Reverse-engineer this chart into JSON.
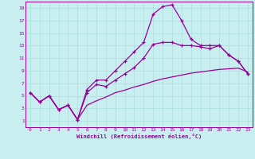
{
  "title": "",
  "xlabel": "Windchill (Refroidissement éolien,°C)",
  "ylabel": "",
  "bg_color": "#c8eef0",
  "line_color": "#990099",
  "grid_color": "#aadddd",
  "xlim": [
    -0.5,
    23.5
  ],
  "ylim": [
    0,
    20
  ],
  "xticks": [
    0,
    1,
    2,
    3,
    4,
    5,
    6,
    7,
    8,
    9,
    10,
    11,
    12,
    13,
    14,
    15,
    16,
    17,
    18,
    19,
    20,
    21,
    22,
    23
  ],
  "yticks": [
    1,
    3,
    5,
    7,
    9,
    11,
    13,
    15,
    17,
    19
  ],
  "line1_x": [
    0,
    1,
    2,
    3,
    4,
    5,
    6,
    7,
    8,
    9,
    10,
    11,
    12,
    13,
    14,
    15,
    16,
    17,
    18,
    19,
    20,
    21,
    22,
    23
  ],
  "line1_y": [
    5.5,
    4.0,
    5.0,
    2.8,
    3.5,
    1.2,
    6.0,
    7.5,
    7.5,
    9.0,
    10.5,
    12.0,
    13.5,
    18.0,
    19.2,
    19.5,
    17.0,
    14.0,
    13.0,
    13.0,
    13.0,
    11.5,
    10.5,
    8.5
  ],
  "line2_x": [
    0,
    1,
    2,
    3,
    4,
    5,
    6,
    7,
    8,
    9,
    10,
    11,
    12,
    13,
    14,
    15,
    16,
    17,
    18,
    19,
    20,
    21,
    22,
    23
  ],
  "line2_y": [
    5.5,
    4.0,
    5.0,
    2.8,
    3.5,
    1.2,
    5.5,
    6.8,
    6.5,
    7.5,
    8.5,
    9.5,
    11.0,
    13.2,
    13.5,
    13.5,
    13.0,
    13.0,
    12.8,
    12.5,
    13.0,
    11.5,
    10.5,
    8.5
  ],
  "line3_x": [
    0,
    1,
    2,
    3,
    4,
    5,
    6,
    7,
    8,
    9,
    10,
    11,
    12,
    13,
    14,
    15,
    16,
    17,
    18,
    19,
    20,
    21,
    22,
    23
  ],
  "line3_y": [
    5.5,
    4.0,
    5.0,
    2.8,
    3.5,
    1.2,
    3.5,
    4.2,
    4.8,
    5.5,
    5.9,
    6.4,
    6.8,
    7.3,
    7.7,
    8.0,
    8.3,
    8.6,
    8.8,
    9.0,
    9.2,
    9.3,
    9.4,
    8.8
  ]
}
